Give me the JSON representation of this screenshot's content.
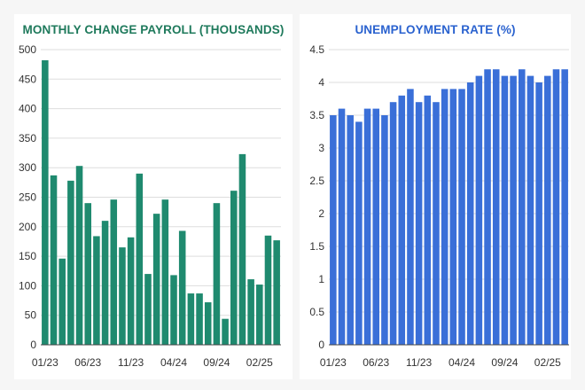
{
  "colors": {
    "payroll_bar": "#1f8a6f",
    "payroll_title": "#1f7a5c",
    "unemployment_bar": "#3a6fd8",
    "unemployment_title": "#2a62cf",
    "grid": "#dddddd",
    "axis": "#444444"
  },
  "chart_data": [
    {
      "type": "bar",
      "title": "MONTHLY CHANGE PAYROLL (THOUSANDS)",
      "xlabel": "",
      "ylabel": "",
      "ylim": [
        0,
        500
      ],
      "yticks": [
        0,
        50,
        100,
        150,
        200,
        250,
        300,
        350,
        400,
        450,
        500
      ],
      "grid": true,
      "xtick_labels": [
        {
          "index": 0,
          "label": "01/23"
        },
        {
          "index": 5,
          "label": "06/23"
        },
        {
          "index": 10,
          "label": "11/23"
        },
        {
          "index": 15,
          "label": "04/24"
        },
        {
          "index": 20,
          "label": "09/24"
        },
        {
          "index": 25,
          "label": "02/25"
        }
      ],
      "values": [
        482,
        287,
        146,
        278,
        303,
        240,
        184,
        210,
        246,
        165,
        182,
        290,
        120,
        222,
        246,
        118,
        193,
        87,
        87,
        72,
        240,
        44,
        261,
        323,
        111,
        102,
        185,
        177
      ]
    },
    {
      "type": "bar",
      "title": "UNEMPLOYMENT RATE (%)",
      "xlabel": "",
      "ylabel": "",
      "ylim": [
        0,
        4.5
      ],
      "yticks": [
        "0",
        "0.5",
        "1",
        "1.5",
        "2",
        "2.5",
        "3",
        "3.5",
        "4",
        "4.5"
      ],
      "grid": true,
      "xtick_labels": [
        {
          "index": 0,
          "label": "01/23"
        },
        {
          "index": 5,
          "label": "06/23"
        },
        {
          "index": 10,
          "label": "11/23"
        },
        {
          "index": 15,
          "label": "04/24"
        },
        {
          "index": 20,
          "label": "09/24"
        },
        {
          "index": 25,
          "label": "02/25"
        }
      ],
      "values": [
        3.5,
        3.6,
        3.5,
        3.4,
        3.6,
        3.6,
        3.5,
        3.7,
        3.8,
        3.9,
        3.7,
        3.8,
        3.7,
        3.9,
        3.9,
        3.9,
        4.0,
        4.1,
        4.2,
        4.2,
        4.1,
        4.1,
        4.2,
        4.1,
        4.0,
        4.1,
        4.2,
        4.2
      ]
    }
  ]
}
